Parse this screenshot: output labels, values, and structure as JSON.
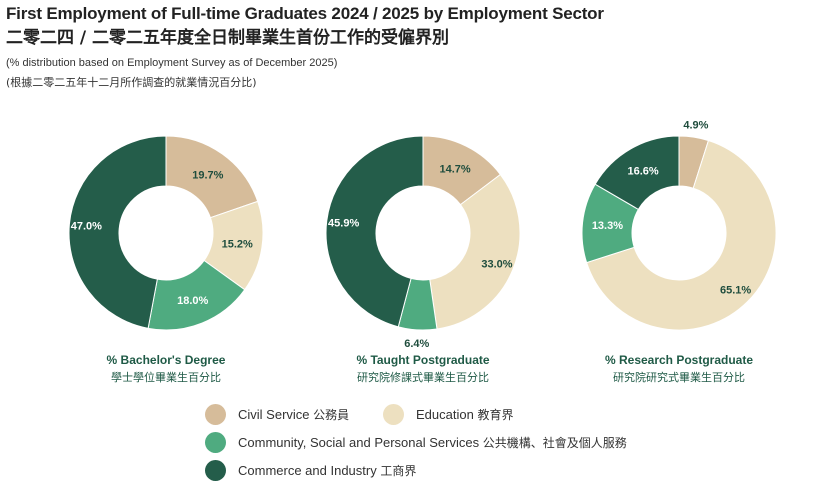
{
  "header": {
    "title_en": "First Employment of Full-time Graduates 2024 / 2025 by Employment Sector",
    "title_zh": "二零二四 / 二零二五年度全日制畢業生首份工作的受僱界別",
    "note_en": "(% distribution based on Employment Survey as of December 2025)",
    "note_zh": "(根據二零二五年十二月所作調查的就業情況百分比)"
  },
  "colors": {
    "civil_service": "#d6bc9a",
    "education": "#ede0c0",
    "community": "#4fab80",
    "commerce": "#245d4a",
    "caption": "#1f5a46"
  },
  "legend": [
    {
      "key": "civil_service",
      "label_en": "Civil Service",
      "label_zh": "公務員"
    },
    {
      "key": "education",
      "label_en": "Education",
      "label_zh": "教育界"
    },
    {
      "key": "community",
      "label_en": "Community, Social and Personal Services",
      "label_zh": "公共機構、社會及個人服務"
    },
    {
      "key": "commerce",
      "label_en": "Commerce and Industry",
      "label_zh": "工商界"
    }
  ],
  "chart_data": [
    {
      "type": "pie",
      "title": "% Bachelor's Degree",
      "subtitle": "學士學位畢業生百分比",
      "categories": [
        "Civil Service",
        "Education",
        "Community, Social and Personal Services",
        "Commerce and Industry"
      ],
      "values": [
        19.7,
        15.2,
        18.0,
        47.0
      ],
      "labels": [
        "19.7%",
        "15.2%",
        "18.0%",
        "47.0%"
      ]
    },
    {
      "type": "pie",
      "title": "% Taught Postgraduate",
      "subtitle": "研究院修課式畢業生百分比",
      "categories": [
        "Civil Service",
        "Education",
        "Community, Social and Personal Services",
        "Commerce and Industry"
      ],
      "values": [
        14.7,
        33.0,
        6.4,
        45.9
      ],
      "labels": [
        "14.7%",
        "33.0%",
        "6.4%",
        "45.9%"
      ]
    },
    {
      "type": "pie",
      "title": "% Research Postgraduate",
      "subtitle": "研究院研究式畢業生百分比",
      "categories": [
        "Civil Service",
        "Education",
        "Community, Social and Personal Services",
        "Commerce and Industry"
      ],
      "values": [
        4.9,
        65.1,
        13.3,
        16.6
      ],
      "labels": [
        "4.9%",
        "65.1%",
        "13.3%",
        "16.6%"
      ]
    }
  ]
}
